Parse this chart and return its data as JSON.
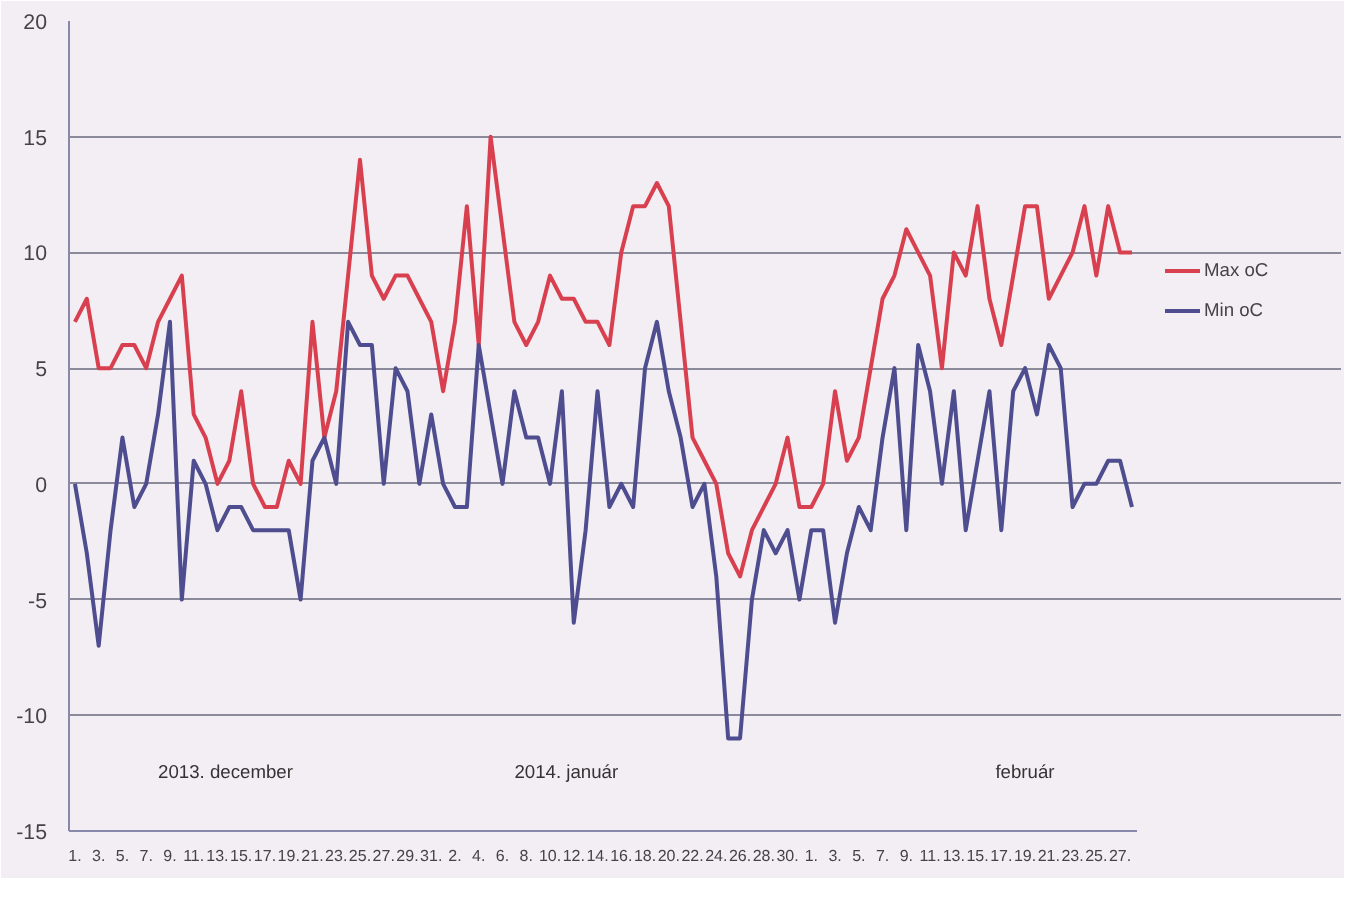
{
  "chart_data": {
    "type": "line",
    "categories": [
      "1.",
      null,
      "3.",
      null,
      "5.",
      null,
      "7.",
      null,
      "9.",
      null,
      "11.",
      null,
      "13.",
      null,
      "15.",
      null,
      "17.",
      null,
      "19.",
      null,
      "21.",
      null,
      "23.",
      null,
      "25.",
      null,
      "27.",
      null,
      "29.",
      null,
      "31.",
      null,
      "2.",
      null,
      "4.",
      null,
      "6.",
      null,
      "8.",
      null,
      "10.",
      null,
      "12.",
      null,
      "14.",
      null,
      "16.",
      null,
      "18.",
      null,
      "20.",
      null,
      "22.",
      null,
      "24.",
      null,
      "26.",
      null,
      "28.",
      null,
      "30.",
      null,
      "1.",
      null,
      "3.",
      null,
      "5.",
      null,
      "7.",
      null,
      "9.",
      null,
      "11.",
      null,
      "13.",
      null,
      "15.",
      null,
      "17.",
      null,
      "19.",
      null,
      "21.",
      null,
      "23.",
      null,
      "25.",
      null,
      "27.",
      null
    ],
    "series": [
      {
        "name": "Max oC",
        "color": "#d9404f",
        "values": [
          7,
          8,
          5,
          5,
          6,
          6,
          5,
          7,
          8,
          9,
          3,
          2,
          0,
          1,
          4,
          0,
          -1,
          -1,
          1,
          0,
          7,
          2,
          4,
          9,
          14,
          9,
          8,
          9,
          9,
          8,
          7,
          4,
          7,
          12,
          6,
          15,
          11,
          7,
          6,
          7,
          9,
          8,
          8,
          7,
          7,
          6,
          10,
          12,
          12,
          13,
          12,
          7,
          2,
          1,
          0,
          -3,
          -4,
          -2,
          -1,
          0,
          2,
          -1,
          -1,
          0,
          4,
          1,
          2,
          5,
          8,
          9,
          11,
          10,
          9,
          5,
          10,
          9,
          12,
          8,
          6,
          9,
          12,
          12,
          8,
          9,
          10,
          12,
          9,
          12,
          10,
          10
        ]
      },
      {
        "name": "Min oC",
        "color": "#4d4d8f",
        "values": [
          0,
          -3,
          -7,
          -2,
          2,
          -1,
          0,
          3,
          7,
          -5,
          1,
          0,
          -2,
          -1,
          -1,
          -2,
          -2,
          -2,
          -2,
          -5,
          1,
          2,
          0,
          7,
          6,
          6,
          0,
          5,
          4,
          0,
          3,
          0,
          -1,
          -1,
          6,
          3,
          0,
          4,
          2,
          2,
          0,
          4,
          -6,
          -2,
          4,
          -1,
          0,
          -1,
          5,
          7,
          4,
          2,
          -1,
          0,
          -4,
          -11,
          -11,
          -5,
          -2,
          -3,
          -2,
          -5,
          -2,
          -2,
          -6,
          -3,
          -1,
          -2,
          2,
          5,
          -2,
          6,
          4,
          0,
          4,
          -2,
          1,
          4,
          -2,
          4,
          5,
          3,
          6,
          5,
          -1,
          0,
          0,
          1,
          1,
          -1
        ]
      }
    ],
    "annotations": [
      "2013. december",
      "2014. január",
      "február"
    ],
    "ylim": [
      -15,
      20
    ],
    "yticks": [
      -15,
      -10,
      -5,
      0,
      5,
      10,
      15,
      20
    ],
    "grid": "y",
    "legend": "right",
    "marker": "none",
    "line_style": "solid"
  }
}
